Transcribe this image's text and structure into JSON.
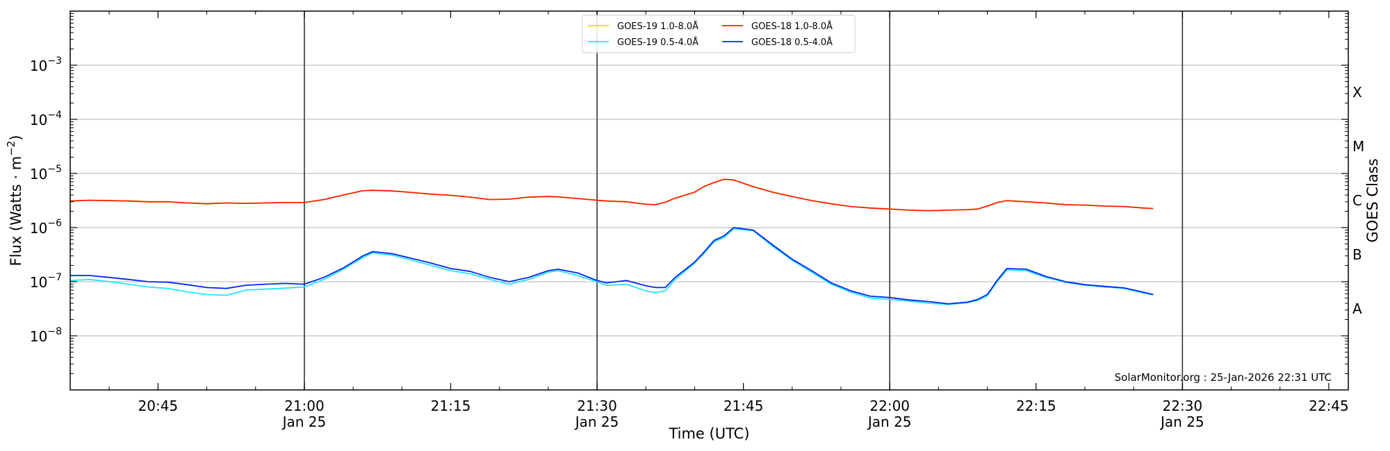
{
  "chart_data": {
    "type": "line",
    "title": "",
    "xlabel": "Time (UTC)",
    "ylabel": "Flux (Watts · m",
    "ylabel_sup": "−2",
    "ylabel_suffix": ")",
    "y2label": "GOES Class",
    "yscale": "log",
    "ylim": [
      1e-09,
      0.01
    ],
    "xlim": [
      "20:36",
      "22:47"
    ],
    "grid": "horizontal",
    "legend_position": "top-center",
    "y_ticks": [
      {
        "value": 1e-08,
        "base": "10",
        "exp": "−8"
      },
      {
        "value": 1e-07,
        "base": "10",
        "exp": "−7"
      },
      {
        "value": 1e-06,
        "base": "10",
        "exp": "−6"
      },
      {
        "value": 1e-05,
        "base": "10",
        "exp": "−5"
      },
      {
        "value": 0.0001,
        "base": "10",
        "exp": "−4"
      },
      {
        "value": 0.001,
        "base": "10",
        "exp": "−3"
      }
    ],
    "x_ticks": [
      {
        "time": "20:45",
        "label": "20:45",
        "sublabel": ""
      },
      {
        "time": "21:00",
        "label": "21:00",
        "sublabel": "Jan 25"
      },
      {
        "time": "21:15",
        "label": "21:15",
        "sublabel": ""
      },
      {
        "time": "21:30",
        "label": "21:30",
        "sublabel": "Jan 25"
      },
      {
        "time": "21:45",
        "label": "21:45",
        "sublabel": ""
      },
      {
        "time": "22:00",
        "label": "22:00",
        "sublabel": "Jan 25"
      },
      {
        "time": "22:15",
        "label": "22:15",
        "sublabel": ""
      },
      {
        "time": "22:30",
        "label": "22:30",
        "sublabel": "Jan 25"
      },
      {
        "time": "22:45",
        "label": "22:45",
        "sublabel": ""
      }
    ],
    "vlines": [
      "21:00",
      "21:30",
      "22:00",
      "22:30"
    ],
    "goes_classes": [
      {
        "label": "A",
        "flux": 3.16e-08
      },
      {
        "label": "B",
        "flux": 3.16e-07
      },
      {
        "label": "C",
        "flux": 3.16e-06
      },
      {
        "label": "M",
        "flux": 3.16e-05
      },
      {
        "label": "X",
        "flux": 0.000316
      }
    ],
    "x": [
      "20:36",
      "20:38",
      "20:40",
      "20:42",
      "20:44",
      "20:46",
      "20:48",
      "20:50",
      "20:52",
      "20:54",
      "20:56",
      "20:58",
      "21:00",
      "21:02",
      "21:04",
      "21:06",
      "21:07",
      "21:09",
      "21:11",
      "21:13",
      "21:15",
      "21:17",
      "21:19",
      "21:21",
      "21:23",
      "21:25",
      "21:26",
      "21:28",
      "21:30",
      "21:31",
      "21:33",
      "21:35",
      "21:36",
      "21:37",
      "21:38",
      "21:40",
      "21:41",
      "21:42",
      "21:43",
      "21:44",
      "21:46",
      "21:48",
      "21:50",
      "21:52",
      "21:54",
      "21:56",
      "21:58",
      "22:00",
      "22:02",
      "22:04",
      "22:06",
      "22:08",
      "22:09",
      "22:10",
      "22:11",
      "22:12",
      "22:14",
      "22:16",
      "22:18",
      "22:20",
      "22:22",
      "22:24",
      "22:26",
      "22:27"
    ],
    "series": [
      {
        "name": "GOES-19 1.0-8.0Å",
        "color": "#ffd700",
        "values": [
          3.1e-06,
          3.2e-06,
          3.15e-06,
          3.1e-06,
          3e-06,
          3e-06,
          2.85e-06,
          2.75e-06,
          2.85e-06,
          2.8e-06,
          2.85e-06,
          2.9e-06,
          2.9e-06,
          3.3e-06,
          4e-06,
          4.8e-06,
          4.9e-06,
          4.75e-06,
          4.45e-06,
          4.15e-06,
          3.95e-06,
          3.65e-06,
          3.3e-06,
          3.35e-06,
          3.65e-06,
          3.75e-06,
          3.7e-06,
          3.45e-06,
          3.2e-06,
          3.1e-06,
          3e-06,
          2.7e-06,
          2.65e-06,
          2.95e-06,
          3.5e-06,
          4.5e-06,
          5.8e-06,
          6.8e-06,
          7.8e-06,
          7.6e-06,
          5.7e-06,
          4.5e-06,
          3.75e-06,
          3.15e-06,
          2.75e-06,
          2.45e-06,
          2.3e-06,
          2.2e-06,
          2.1e-06,
          2.05e-06,
          2.1e-06,
          2.15e-06,
          2.2e-06,
          2.5e-06,
          2.9e-06,
          3.15e-06,
          3e-06,
          2.85e-06,
          2.65e-06,
          2.6e-06,
          2.5e-06,
          2.45e-06,
          2.3e-06,
          2.25e-06
        ]
      },
      {
        "name": "GOES-18 1.0-8.0Å",
        "color": "#ff2000",
        "values": [
          3.1e-06,
          3.2e-06,
          3.15e-06,
          3.1e-06,
          3e-06,
          3e-06,
          2.85e-06,
          2.75e-06,
          2.85e-06,
          2.8e-06,
          2.85e-06,
          2.9e-06,
          2.9e-06,
          3.3e-06,
          4e-06,
          4.8e-06,
          4.9e-06,
          4.75e-06,
          4.45e-06,
          4.15e-06,
          3.95e-06,
          3.65e-06,
          3.3e-06,
          3.35e-06,
          3.65e-06,
          3.75e-06,
          3.7e-06,
          3.45e-06,
          3.2e-06,
          3.1e-06,
          3e-06,
          2.7e-06,
          2.65e-06,
          2.95e-06,
          3.5e-06,
          4.5e-06,
          5.8e-06,
          6.8e-06,
          7.8e-06,
          7.6e-06,
          5.7e-06,
          4.5e-06,
          3.75e-06,
          3.15e-06,
          2.75e-06,
          2.45e-06,
          2.3e-06,
          2.2e-06,
          2.1e-06,
          2.05e-06,
          2.1e-06,
          2.15e-06,
          2.2e-06,
          2.5e-06,
          2.9e-06,
          3.15e-06,
          3e-06,
          2.85e-06,
          2.65e-06,
          2.6e-06,
          2.5e-06,
          2.45e-06,
          2.3e-06,
          2.25e-06
        ]
      },
      {
        "name": "GOES-19 0.5-4.0Å",
        "color": "#22e4ff",
        "values": [
          1.05e-07,
          1.1e-07,
          1e-07,
          9e-08,
          8e-08,
          7.5e-08,
          6.5e-08,
          5.8e-08,
          5.6e-08,
          7e-08,
          7.3e-08,
          7.6e-08,
          8e-08,
          1.1e-07,
          1.7e-07,
          2.8e-07,
          3.4e-07,
          3.1e-07,
          2.5e-07,
          2e-07,
          1.6e-07,
          1.4e-07,
          1.1e-07,
          9e-08,
          1.1e-07,
          1.5e-07,
          1.6e-07,
          1.3e-07,
          1e-07,
          8.5e-08,
          9e-08,
          6.8e-08,
          6.3e-08,
          6.8e-08,
          1.1e-07,
          2.2e-07,
          3.4e-07,
          5.5e-07,
          6.5e-07,
          9.5e-07,
          8.8e-07,
          4.5e-07,
          2.5e-07,
          1.5e-07,
          9e-08,
          6.4e-08,
          5e-08,
          4.7e-08,
          4.4e-08,
          4e-08,
          3.8e-08,
          4.1e-08,
          4.5e-08,
          5.5e-08,
          1e-07,
          1.65e-07,
          1.6e-07,
          1.2e-07,
          9.8e-08,
          8.6e-08,
          8e-08,
          7.5e-08,
          6.2e-08,
          5.7e-08
        ]
      },
      {
        "name": "GOES-18 0.5-4.0Å",
        "color": "#0027f5",
        "values": [
          1.3e-07,
          1.3e-07,
          1.2e-07,
          1.1e-07,
          1e-07,
          9.8e-08,
          8.8e-08,
          7.8e-08,
          7.5e-08,
          8.6e-08,
          9e-08,
          9.3e-08,
          9e-08,
          1.2e-07,
          1.8e-07,
          3e-07,
          3.6e-07,
          3.3e-07,
          2.7e-07,
          2.2e-07,
          1.75e-07,
          1.55e-07,
          1.2e-07,
          1e-07,
          1.2e-07,
          1.6e-07,
          1.7e-07,
          1.45e-07,
          1.05e-07,
          9.5e-08,
          1.05e-07,
          8.4e-08,
          7.8e-08,
          7.8e-08,
          1.2e-07,
          2.3e-07,
          3.6e-07,
          5.8e-07,
          7e-07,
          1e-06,
          9e-07,
          4.8e-07,
          2.6e-07,
          1.6e-07,
          9.5e-08,
          6.8e-08,
          5.4e-08,
          5.1e-08,
          4.6e-08,
          4.3e-08,
          3.9e-08,
          4.2e-08,
          4.7e-08,
          5.8e-08,
          1.05e-07,
          1.75e-07,
          1.7e-07,
          1.25e-07,
          1e-07,
          8.8e-08,
          8.2e-08,
          7.7e-08,
          6.4e-08,
          5.8e-08
        ]
      }
    ],
    "legend_order": [
      0,
      2,
      1,
      3
    ],
    "annotation": "SolarMonitor.org : 25-Jan-2026 22:31 UTC"
  }
}
